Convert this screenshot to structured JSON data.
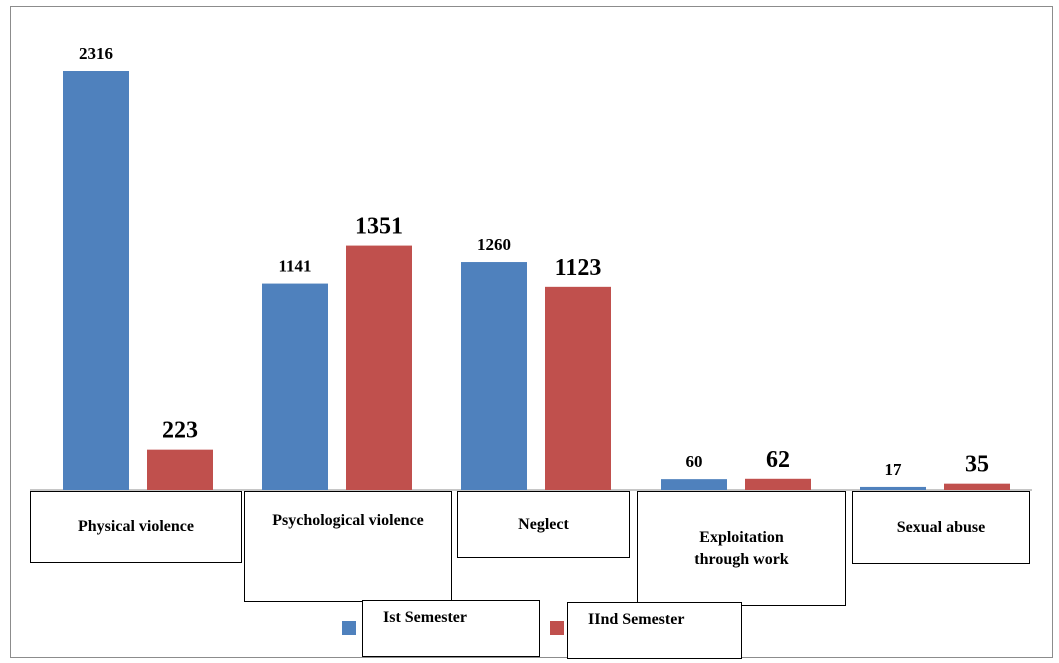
{
  "chart_data": {
    "type": "bar",
    "categories": [
      "Physical violence",
      "Psychological violence",
      "Neglect",
      "Exploitation through work",
      "Sexual abuse"
    ],
    "series": [
      {
        "name": "Ist Semester",
        "values": [
          2316,
          1141,
          1260,
          60,
          17
        ],
        "color": "#4f81bd"
      },
      {
        "name": "IInd Semester",
        "values": [
          223,
          1351,
          1123,
          62,
          35
        ],
        "color": "#c0504d"
      }
    ],
    "title": "",
    "xlabel": "",
    "ylabel": "",
    "ylim": [
      0,
      2500
    ],
    "grid": false,
    "legend_position": "bottom"
  }
}
